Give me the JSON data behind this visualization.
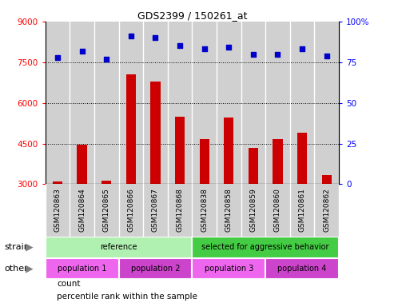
{
  "title": "GDS2399 / 150261_at",
  "samples": [
    "GSM120863",
    "GSM120864",
    "GSM120865",
    "GSM120866",
    "GSM120867",
    "GSM120868",
    "GSM120838",
    "GSM120858",
    "GSM120859",
    "GSM120860",
    "GSM120861",
    "GSM120862"
  ],
  "counts": [
    3100,
    4450,
    3120,
    7050,
    6800,
    5500,
    4650,
    5450,
    4350,
    4650,
    4900,
    3350
  ],
  "percentiles": [
    78,
    82,
    77,
    91,
    90,
    85,
    83,
    84,
    80,
    80,
    83,
    79
  ],
  "bar_color": "#cc0000",
  "dot_color": "#0000cc",
  "ylim_left": [
    3000,
    9000
  ],
  "ylim_right": [
    0,
    100
  ],
  "yticks_left": [
    3000,
    4500,
    6000,
    7500,
    9000
  ],
  "yticks_right": [
    0,
    25,
    50,
    75,
    100
  ],
  "grid_values": [
    4500,
    6000,
    7500
  ],
  "strain_groups": [
    {
      "label": "reference",
      "start": 0,
      "end": 6,
      "color": "#b0f0b0"
    },
    {
      "label": "selected for aggressive behavior",
      "start": 6,
      "end": 12,
      "color": "#44cc44"
    }
  ],
  "other_groups": [
    {
      "label": "population 1",
      "start": 0,
      "end": 3,
      "color": "#ee66ee"
    },
    {
      "label": "population 2",
      "start": 3,
      "end": 6,
      "color": "#cc44cc"
    },
    {
      "label": "population 3",
      "start": 6,
      "end": 9,
      "color": "#ee66ee"
    },
    {
      "label": "population 4",
      "start": 9,
      "end": 12,
      "color": "#cc44cc"
    }
  ],
  "strain_label": "strain",
  "other_label": "other",
  "legend_count_label": "count",
  "legend_pct_label": "percentile rank within the sample",
  "bg_color": "#ffffff",
  "col_bg": "#d0d0d0",
  "plot_border": "#000000"
}
